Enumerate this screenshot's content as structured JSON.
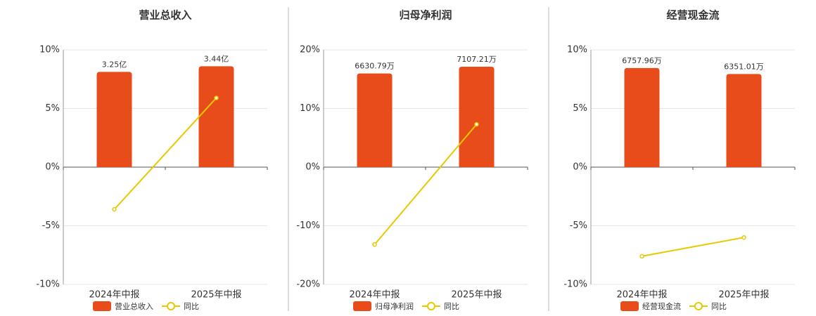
{
  "chart_data": [
    {
      "type": "bar",
      "title": "营业总收入",
      "categories": [
        "2024年中报",
        "2025年中报"
      ],
      "series": [
        {
          "name": "营业总收入",
          "type": "bar",
          "color": "#e84c1a",
          "axis": "y2",
          "values": [
            3.25,
            3.44
          ],
          "value_labels": [
            "3.25亿",
            "3.44亿"
          ]
        },
        {
          "name": "同比",
          "type": "line",
          "color": "#e8c800",
          "values": [
            -3.6,
            5.9
          ]
        }
      ],
      "ylim": [
        -10,
        10
      ],
      "yticks": [
        {
          "value": -10,
          "label": "-10%"
        },
        {
          "value": -5,
          "label": "-5%"
        },
        {
          "value": 0,
          "label": "0%"
        },
        {
          "value": 5,
          "label": "5%"
        },
        {
          "value": 10,
          "label": "10%"
        }
      ],
      "y2lim": [
        -4,
        4
      ],
      "grid": true
    },
    {
      "type": "bar",
      "title": "归母净利润",
      "categories": [
        "2024年中报",
        "2025年中报"
      ],
      "series": [
        {
          "name": "归母净利润",
          "type": "bar",
          "color": "#e84c1a",
          "axis": "y2",
          "values": [
            6630.79,
            7107.21
          ],
          "value_labels": [
            "6630.79万",
            "7107.21万"
          ]
        },
        {
          "name": "同比",
          "type": "line",
          "color": "#e8c800",
          "values": [
            -13.2,
            7.3
          ]
        }
      ],
      "ylim": [
        -20,
        20
      ],
      "yticks": [
        {
          "value": -20,
          "label": "-20%"
        },
        {
          "value": -10,
          "label": "-10%"
        },
        {
          "value": 0,
          "label": "0%"
        },
        {
          "value": 10,
          "label": "10%"
        },
        {
          "value": 20,
          "label": "20%"
        }
      ],
      "y2lim": [
        -8300,
        8300
      ],
      "grid": true
    },
    {
      "type": "bar",
      "title": "经营现金流",
      "categories": [
        "2024年中报",
        "2025年中报"
      ],
      "series": [
        {
          "name": "经营现金流",
          "type": "bar",
          "color": "#e84c1a",
          "axis": "y2",
          "values": [
            6757.96,
            6351.01
          ],
          "value_labels": [
            "6757.96万",
            "6351.01万"
          ]
        },
        {
          "name": "同比",
          "type": "line",
          "color": "#e8c800",
          "values": [
            -7.6,
            -6.0
          ]
        }
      ],
      "ylim": [
        -10,
        10
      ],
      "yticks": [
        {
          "value": -10,
          "label": "-10%"
        },
        {
          "value": -5,
          "label": "-5%"
        },
        {
          "value": 0,
          "label": "0%"
        },
        {
          "value": 5,
          "label": "5%"
        },
        {
          "value": 10,
          "label": "10%"
        }
      ],
      "y2lim": [
        -8000,
        8000
      ],
      "grid": true
    }
  ]
}
